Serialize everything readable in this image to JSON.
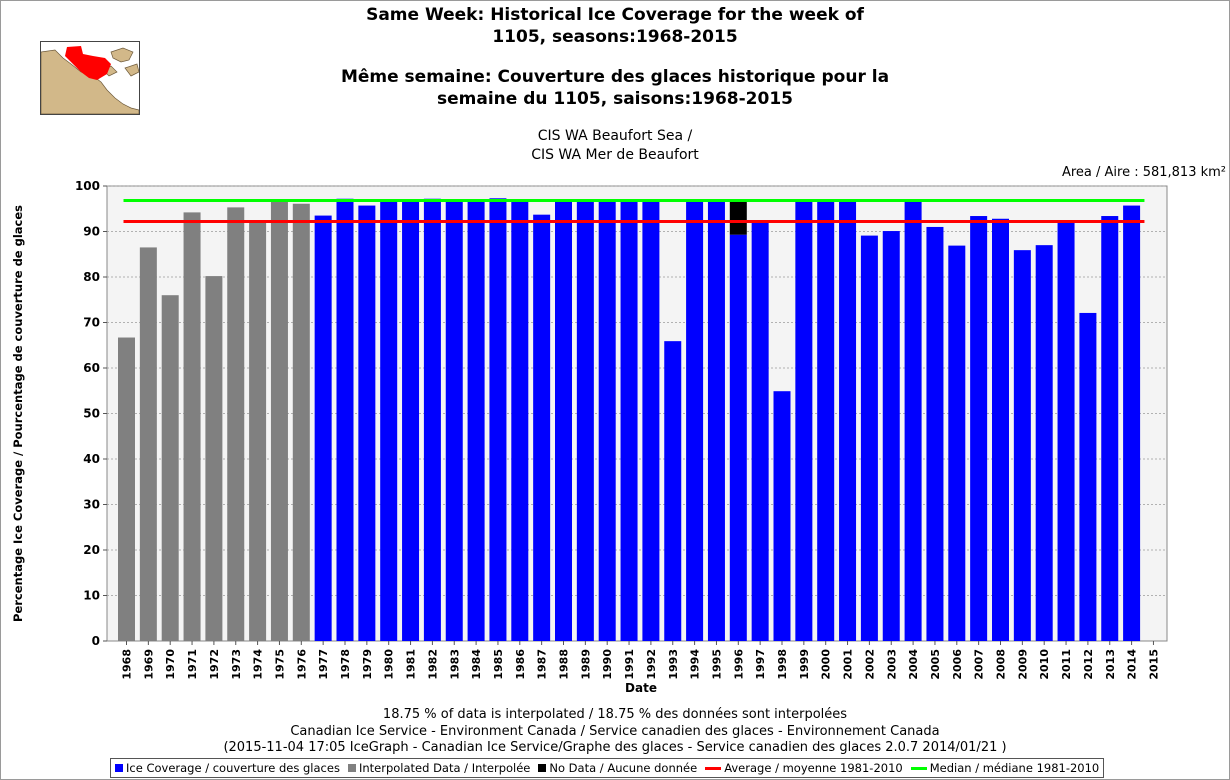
{
  "header": {
    "title_en_line1": "Same Week: Historical Ice Coverage for the week of",
    "title_en_line2": "1105, seasons:1968-2015",
    "title_fr_line1": "Même semaine: Couverture des glaces historique pour la",
    "title_fr_line2": "semaine du 1105, saisons:1968-2015",
    "region_line1": "CIS WA Beaufort Sea /",
    "region_line2": "CIS WA Mer de Beaufort",
    "area": "Area / Aire : 581,813 km²"
  },
  "footer": {
    "line1": "18.75 % of data is interpolated / 18.75 % des données sont interpolées",
    "line2": "Canadian Ice Service - Environment Canada / Service canadien des glaces - Environnement Canada",
    "line3": "(2015-11-04 17:05 IceGraph - Canadian Ice Service/Graphe des glaces - Service canadien des glaces 2.0.7 2014/01/21 )"
  },
  "legend": {
    "ice": "Ice Coverage / couverture des glaces",
    "interp": "Interpolated Data / Interpolée",
    "nodata": "No Data / Aucune donnée",
    "average": "Average / moyenne 1981-2010",
    "median": "Median / médiane 1981-2010"
  },
  "colors": {
    "ice": "#0000ff",
    "interpolated": "#808080",
    "no_data": "#000000",
    "average": "#ff0000",
    "median": "#00ff00"
  },
  "chart_data": {
    "type": "bar",
    "xlabel": "Date",
    "ylabel": "Percentage Ice Coverage / Pourcentage de couverture de glaces",
    "ylim": [
      0,
      100
    ],
    "yticks": [
      0,
      10,
      20,
      30,
      40,
      50,
      60,
      70,
      80,
      90,
      100
    ],
    "grid": true,
    "legend_position": "bottom",
    "categories": [
      "1968",
      "1969",
      "1970",
      "1971",
      "1972",
      "1973",
      "1974",
      "1975",
      "1976",
      "1977",
      "1978",
      "1979",
      "1980",
      "1981",
      "1982",
      "1983",
      "1984",
      "1985",
      "1986",
      "1987",
      "1988",
      "1989",
      "1990",
      "1991",
      "1992",
      "1993",
      "1994",
      "1995",
      "1996",
      "1997",
      "1998",
      "1999",
      "2000",
      "2001",
      "2002",
      "2003",
      "2004",
      "2005",
      "2006",
      "2007",
      "2008",
      "2009",
      "2010",
      "2011",
      "2012",
      "2013",
      "2014",
      "2015"
    ],
    "values": [
      66.7,
      86.5,
      76,
      94.2,
      80.2,
      95.3,
      92,
      96.5,
      96.1,
      93.5,
      97.2,
      95.7,
      96.8,
      96.7,
      97.2,
      97.1,
      97.1,
      97.3,
      96.6,
      93.7,
      97,
      96.7,
      96.7,
      97.1,
      96.6,
      65.9,
      96.9,
      97,
      89.3,
      92,
      54.9,
      97,
      97,
      97,
      89.1,
      90.1,
      97,
      91,
      86.9,
      93.4,
      92.8,
      85.9,
      87,
      92,
      72.1,
      93.4,
      95.7,
      null
    ],
    "bar_type": [
      "interpolated",
      "interpolated",
      "interpolated",
      "interpolated",
      "interpolated",
      "interpolated",
      "interpolated",
      "interpolated",
      "interpolated",
      "ice",
      "ice",
      "ice",
      "ice",
      "ice",
      "ice",
      "ice",
      "ice",
      "ice",
      "ice",
      "ice",
      "ice",
      "ice",
      "ice",
      "ice",
      "ice",
      "ice",
      "ice",
      "ice",
      "ice",
      "ice",
      "ice",
      "ice",
      "ice",
      "ice",
      "ice",
      "ice",
      "ice",
      "ice",
      "ice",
      "ice",
      "ice",
      "ice",
      "ice",
      "ice",
      "ice",
      "ice",
      "ice",
      "none"
    ],
    "no_data_segments": [
      {
        "category": "1996",
        "from": 89.3,
        "to": 96.7
      }
    ],
    "average_1981_2010": 92.2,
    "median_1981_2010": 96.8
  }
}
